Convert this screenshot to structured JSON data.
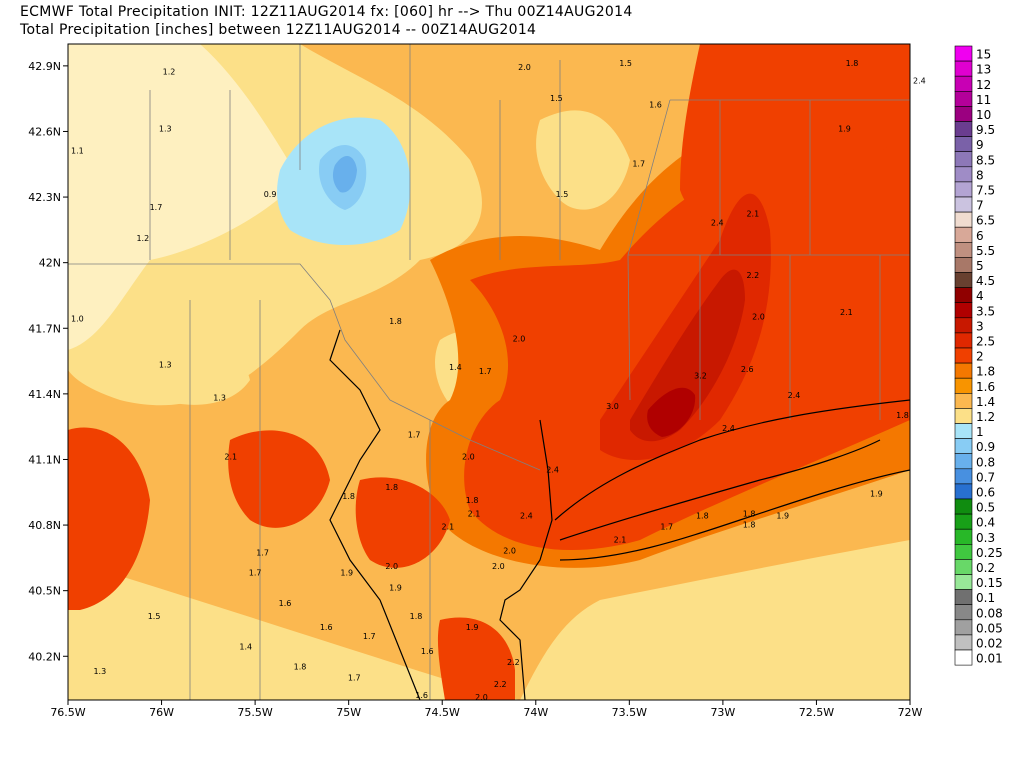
{
  "header": {
    "line1": "ECMWF Total Precipitation INIT: 12Z11AUG2014 fx: [060] hr --> Thu 00Z14AUG2014",
    "line2": "Total Precipitation [inches] between 12Z11AUG2014 -- 00Z14AUG2014"
  },
  "axes": {
    "lat_labels": [
      "42.9N",
      "42.6N",
      "42.3N",
      "42N",
      "41.7N",
      "41.4N",
      "41.1N",
      "40.8N",
      "40.5N",
      "40.2N"
    ],
    "lon_labels": [
      "76.5W",
      "76W",
      "75.5W",
      "75W",
      "74.5W",
      "74W",
      "73.5W",
      "73W",
      "72.5W",
      "72W"
    ]
  },
  "legend": {
    "labels": [
      "15",
      "13",
      "12",
      "11",
      "10",
      "9.5",
      "9",
      "8.5",
      "8",
      "7.5",
      "7",
      "6.5",
      "6",
      "5.5",
      "5",
      "4.5",
      "4",
      "3.5",
      "3",
      "2.5",
      "2",
      "1.8",
      "1.6",
      "1.4",
      "1.2",
      "1",
      "0.9",
      "0.8",
      "0.7",
      "0.6",
      "0.5",
      "0.4",
      "0.3",
      "0.25",
      "0.2",
      "0.15",
      "0.1",
      "0.08",
      "0.05",
      "0.02",
      "0.01"
    ],
    "colors": [
      "#f000f0",
      "#e000d0",
      "#c800b4",
      "#b4009a",
      "#9b0080",
      "#6a3d8f",
      "#7a61a8",
      "#8d78b8",
      "#9f8cc6",
      "#b3a4d3",
      "#cbc3e0",
      "#f0dcd0",
      "#d8a898",
      "#c09080",
      "#a87868",
      "#684030",
      "#900000",
      "#b00000",
      "#c81800",
      "#e02800",
      "#f04000",
      "#f47800",
      "#f89400",
      "#fbb850",
      "#fce088",
      "#a8e4f8",
      "#88ccf4",
      "#68b0ec",
      "#4890e0",
      "#2870d0",
      "#108c10",
      "#18a018",
      "#28b828",
      "#40c840",
      "#68d868",
      "#98e898",
      "#707070",
      "#888888",
      "#a0a0a0",
      "#c0c0c0",
      "#ffffff"
    ]
  },
  "map_values": [
    {
      "v": "1.2",
      "lon": -75.96,
      "lat": 42.86
    },
    {
      "v": "1.3",
      "lon": -75.98,
      "lat": 42.6
    },
    {
      "v": "1.1",
      "lon": -76.45,
      "lat": 42.5
    },
    {
      "v": "0.9",
      "lon": -75.42,
      "lat": 42.3
    },
    {
      "v": "1.7",
      "lon": -76.03,
      "lat": 42.24
    },
    {
      "v": "1.2",
      "lon": -76.1,
      "lat": 42.1
    },
    {
      "v": "1.0",
      "lon": -76.45,
      "lat": 41.73
    },
    {
      "v": "1.3",
      "lon": -75.98,
      "lat": 41.52
    },
    {
      "v": "1.3",
      "lon": -75.69,
      "lat": 41.37
    },
    {
      "v": "2.0",
      "lon": -74.06,
      "lat": 42.88
    },
    {
      "v": "1.5",
      "lon": -73.89,
      "lat": 42.74
    },
    {
      "v": "1.5",
      "lon": -73.52,
      "lat": 42.9
    },
    {
      "v": "1.8",
      "lon": -72.31,
      "lat": 42.9
    },
    {
      "v": "2.4",
      "lon": -71.95,
      "lat": 42.82
    },
    {
      "v": "1.6",
      "lon": -73.36,
      "lat": 42.71
    },
    {
      "v": "1.9",
      "lon": -72.35,
      "lat": 42.6
    },
    {
      "v": "1.7",
      "lon": -73.45,
      "lat": 42.44
    },
    {
      "v": "1.5",
      "lon": -73.86,
      "lat": 42.3
    },
    {
      "v": "2.1",
      "lon": -72.84,
      "lat": 42.21
    },
    {
      "v": "2.4",
      "lon": -73.03,
      "lat": 42.17
    },
    {
      "v": "2.2",
      "lon": -72.84,
      "lat": 41.93
    },
    {
      "v": "2.0",
      "lon": -72.81,
      "lat": 41.74
    },
    {
      "v": "2.1",
      "lon": -72.34,
      "lat": 41.76
    },
    {
      "v": "1.8",
      "lon": -74.75,
      "lat": 41.72
    },
    {
      "v": "2.0",
      "lon": -74.09,
      "lat": 41.64
    },
    {
      "v": "1.4",
      "lon": -74.43,
      "lat": 41.51
    },
    {
      "v": "1.7",
      "lon": -74.27,
      "lat": 41.49
    },
    {
      "v": "3.2",
      "lon": -73.12,
      "lat": 41.47
    },
    {
      "v": "2.6",
      "lon": -72.87,
      "lat": 41.5
    },
    {
      "v": "3.0",
      "lon": -73.59,
      "lat": 41.33
    },
    {
      "v": "2.4",
      "lon": -72.62,
      "lat": 41.38
    },
    {
      "v": "1.8",
      "lon": -72.04,
      "lat": 41.29
    },
    {
      "v": "2.4",
      "lon": -72.97,
      "lat": 41.23
    },
    {
      "v": "1.7",
      "lon": -74.65,
      "lat": 41.2
    },
    {
      "v": "2.1",
      "lon": -75.63,
      "lat": 41.1
    },
    {
      "v": "2.0",
      "lon": -74.36,
      "lat": 41.1
    },
    {
      "v": "2.4",
      "lon": -73.91,
      "lat": 41.04
    },
    {
      "v": "1.8",
      "lon": -74.77,
      "lat": 40.96
    },
    {
      "v": "1.8",
      "lon": -75.0,
      "lat": 40.92
    },
    {
      "v": "1.8",
      "lon": -74.34,
      "lat": 40.9
    },
    {
      "v": "2.1",
      "lon": -74.33,
      "lat": 40.84
    },
    {
      "v": "2.4",
      "lon": -74.05,
      "lat": 40.83
    },
    {
      "v": "1.8",
      "lon": -73.11,
      "lat": 40.83
    },
    {
      "v": "1.8",
      "lon": -72.86,
      "lat": 40.84
    },
    {
      "v": "1.9",
      "lon": -72.68,
      "lat": 40.83
    },
    {
      "v": "1.9",
      "lon": -72.18,
      "lat": 40.93
    },
    {
      "v": "1.7",
      "lon": -73.3,
      "lat": 40.78
    },
    {
      "v": "1.8",
      "lon": -72.86,
      "lat": 40.79
    },
    {
      "v": "2.1",
      "lon": -74.47,
      "lat": 40.78
    },
    {
      "v": "2.1",
      "lon": -73.55,
      "lat": 40.72
    },
    {
      "v": "2.0",
      "lon": -74.14,
      "lat": 40.67
    },
    {
      "v": "2.0",
      "lon": -74.2,
      "lat": 40.6
    },
    {
      "v": "2.0",
      "lon": -74.77,
      "lat": 40.6
    },
    {
      "v": "1.7",
      "lon": -75.46,
      "lat": 40.66
    },
    {
      "v": "1.7",
      "lon": -75.5,
      "lat": 40.57
    },
    {
      "v": "1.9",
      "lon": -75.01,
      "lat": 40.57
    },
    {
      "v": "1.9",
      "lon": -74.75,
      "lat": 40.5
    },
    {
      "v": "1.6",
      "lon": -75.34,
      "lat": 40.43
    },
    {
      "v": "1.5",
      "lon": -76.04,
      "lat": 40.37
    },
    {
      "v": "1.8",
      "lon": -74.64,
      "lat": 40.37
    },
    {
      "v": "1.6",
      "lon": -75.12,
      "lat": 40.32
    },
    {
      "v": "1.7",
      "lon": -74.89,
      "lat": 40.28
    },
    {
      "v": "1.9",
      "lon": -74.34,
      "lat": 40.32
    },
    {
      "v": "1.4",
      "lon": -75.55,
      "lat": 40.23
    },
    {
      "v": "1.6",
      "lon": -74.58,
      "lat": 40.21
    },
    {
      "v": "2.2",
      "lon": -74.12,
      "lat": 40.16
    },
    {
      "v": "1.3",
      "lon": -76.33,
      "lat": 40.12
    },
    {
      "v": "1.8",
      "lon": -75.26,
      "lat": 40.14
    },
    {
      "v": "1.7",
      "lon": -74.97,
      "lat": 40.09
    },
    {
      "v": "2.2",
      "lon": -74.19,
      "lat": 40.06
    },
    {
      "v": "2.0",
      "lon": -74.29,
      "lat": 40.0
    },
    {
      "v": "1.6",
      "lon": -74.61,
      "lat": 40.01
    }
  ]
}
